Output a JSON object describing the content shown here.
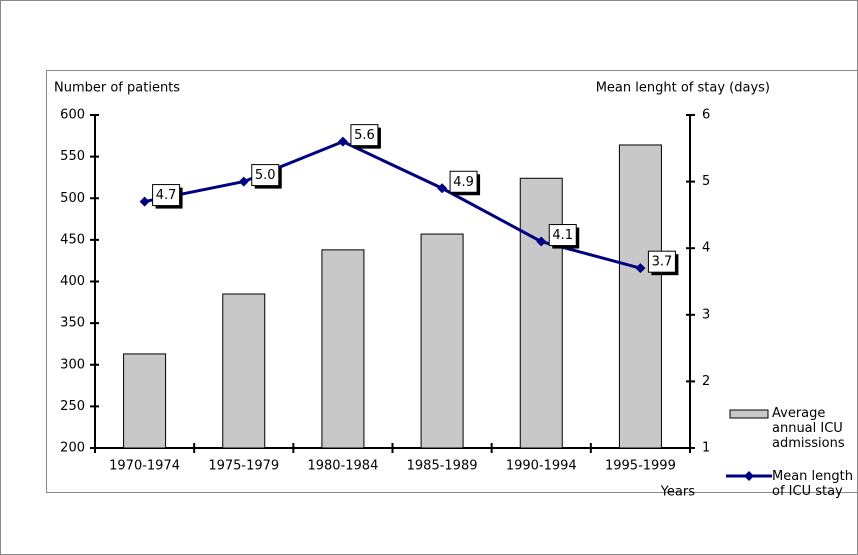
{
  "chart_data": {
    "type": "combo",
    "categories": [
      "1970-1974",
      "1975-1979",
      "1980-1984",
      "1985-1989",
      "1990-1994",
      "1995-1999"
    ],
    "series": [
      {
        "name": "Average annual ICU admissions",
        "type": "bar",
        "color": "#c8c8c8",
        "values": [
          313,
          385,
          438,
          457,
          524,
          564
        ]
      },
      {
        "name": "Mean length of ICU stay",
        "type": "line",
        "axis": "y2",
        "color": "#000080",
        "values": [
          4.7,
          5.0,
          5.6,
          4.9,
          4.1,
          3.7
        ],
        "value_labels": [
          "4.7",
          "5.0",
          "5.6",
          "4.9",
          "4.1",
          "3.7"
        ]
      }
    ],
    "ylabel": "Number of patients",
    "y2label": "Mean lenght of stay (days)",
    "xlabel": "Years",
    "ylim": [
      200,
      600
    ],
    "yticks": [
      200,
      250,
      300,
      350,
      400,
      450,
      500,
      550,
      600
    ],
    "y2lim": [
      1,
      6
    ],
    "y2ticks": [
      1,
      2,
      3,
      4,
      5,
      6
    ]
  }
}
